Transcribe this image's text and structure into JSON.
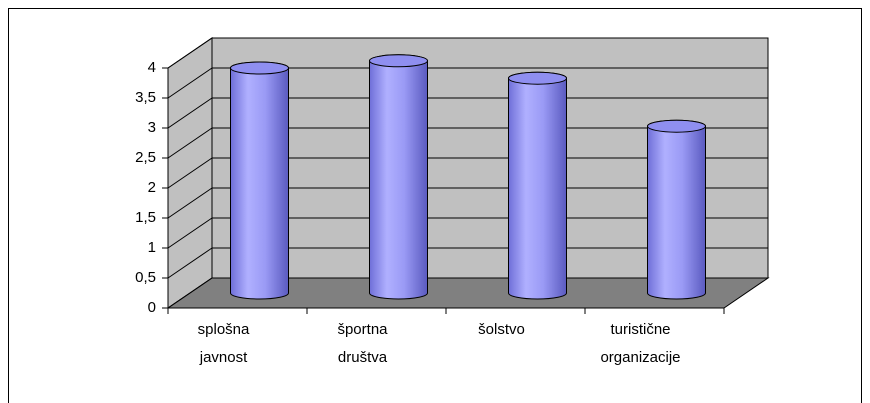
{
  "chart_data": {
    "type": "bar3d",
    "categories": [
      [
        "splošna",
        "javnost"
      ],
      [
        "športna",
        "društva"
      ],
      [
        "šolstvo"
      ],
      [
        "turistične",
        "organizacije"
      ]
    ],
    "values": [
      3.75,
      3.87,
      3.58,
      2.78
    ],
    "color": "#9999ff",
    "ylim": [
      0,
      4
    ],
    "yticks": [
      0,
      {
        "value": 0.5,
        "label": "0,5"
      },
      1,
      {
        "value": 1.5,
        "label": "1,5"
      },
      2,
      {
        "value": 2.5,
        "label": "2,5"
      },
      3,
      {
        "value": 3.5,
        "label": "3,5"
      },
      4
    ],
    "grid": true
  }
}
